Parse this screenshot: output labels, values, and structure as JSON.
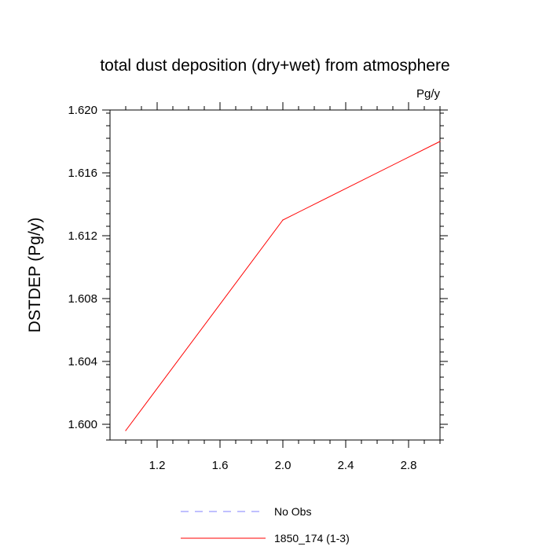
{
  "chart_data": {
    "type": "line",
    "title": "total dust deposition (dry+wet) from atmosphere",
    "units": "Pg/y",
    "ylabel": "DSTDEP  (Pg/y)",
    "xlabel": "",
    "xlim": [
      0.9,
      3.0
    ],
    "ylim": [
      1.599,
      1.62
    ],
    "x_ticks": [
      1.2,
      1.6,
      2.0,
      2.4,
      2.8
    ],
    "x_tick_labels": [
      "1.2",
      "1.6",
      "2.0",
      "2.4",
      "2.8"
    ],
    "y_ticks": [
      1.6,
      1.604,
      1.608,
      1.612,
      1.616,
      1.62
    ],
    "y_tick_labels": [
      "1.600",
      "1.604",
      "1.608",
      "1.612",
      "1.616",
      "1.620"
    ],
    "series": [
      {
        "name": "1850_174 (1-3)",
        "color": "#ff0000",
        "style": "solid",
        "x": [
          1,
          2,
          3
        ],
        "y": [
          1.5996,
          1.613,
          1.618
        ]
      }
    ],
    "legend": {
      "placement": "bottom",
      "entries": [
        {
          "label": "No Obs",
          "color": "#8080ff",
          "style": "dashed"
        },
        {
          "label": "1850_174 (1-3)",
          "color": "#ff0000",
          "style": "solid"
        }
      ]
    },
    "grid": false
  }
}
